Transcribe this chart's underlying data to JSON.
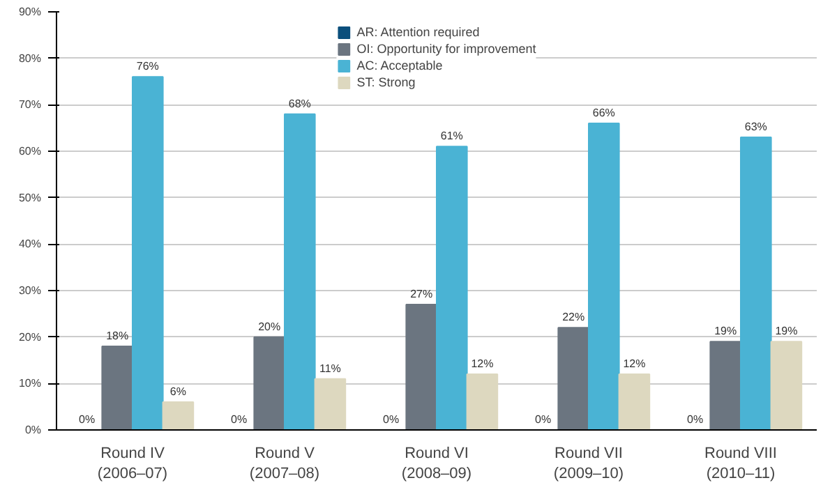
{
  "chart_data": {
    "type": "bar",
    "categories": [
      "Round IV\n(2006–07)",
      "Round V\n(2007–08)",
      "Round VI\n(2008–09)",
      "Round VII\n(2009–10)",
      "Round VIII\n(2010–11)"
    ],
    "series": [
      {
        "name": "AR: Attention required",
        "color": "#0b4f7c",
        "values": [
          0,
          0,
          0,
          0,
          0
        ],
        "value_labels": [
          "0%",
          "0%",
          "0%",
          "0%",
          "0%"
        ]
      },
      {
        "name": "OI: Opportunity for improvement",
        "color": "#6b7580",
        "values": [
          18,
          20,
          27,
          22,
          19
        ],
        "value_labels": [
          "18%",
          "20%",
          "27%",
          "22%",
          "19%"
        ]
      },
      {
        "name": "AC: Acceptable",
        "color": "#4ab3d4",
        "values": [
          76,
          68,
          61,
          66,
          63
        ],
        "value_labels": [
          "76%",
          "68%",
          "61%",
          "66%",
          "63%"
        ]
      },
      {
        "name": "ST: Strong",
        "color": "#ddd8bf",
        "values": [
          6,
          11,
          12,
          12,
          19
        ],
        "value_labels": [
          "6%",
          "11%",
          "12%",
          "12%",
          "19%"
        ]
      }
    ],
    "ylim": [
      0,
      90
    ],
    "yticks": [
      {
        "value": 0,
        "label": "0%"
      },
      {
        "value": 10,
        "label": "10%"
      },
      {
        "value": 20,
        "label": "20%"
      },
      {
        "value": 30,
        "label": "30%"
      },
      {
        "value": 40,
        "label": "40%"
      },
      {
        "value": 50,
        "label": "50%"
      },
      {
        "value": 60,
        "label": "60%"
      },
      {
        "value": 70,
        "label": "70%"
      },
      {
        "value": 80,
        "label": "80%"
      },
      {
        "value": 90,
        "label": "90%"
      }
    ],
    "grid": "y",
    "legend": "top"
  }
}
